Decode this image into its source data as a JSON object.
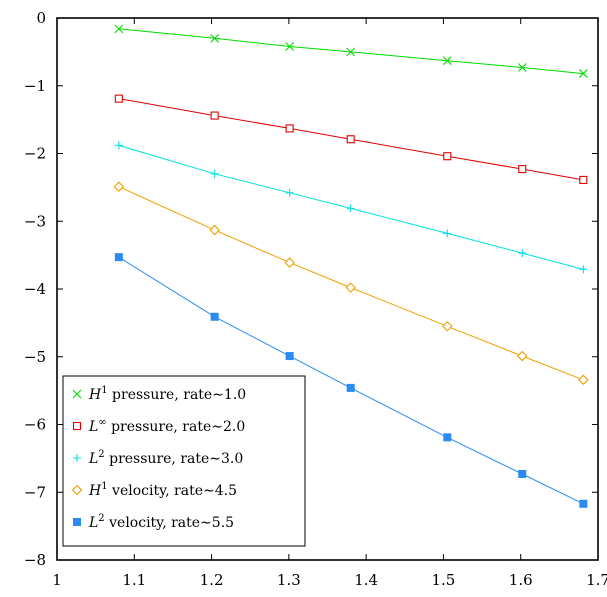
{
  "chart_data": {
    "type": "line",
    "xlim": [
      1,
      1.7
    ],
    "ylim": [
      -8,
      0
    ],
    "x_ticks": [
      "1",
      "1.1",
      "1.2",
      "1.3",
      "1.4",
      "1.5",
      "1.6",
      "1.7"
    ],
    "y_ticks": [
      "0",
      "−1",
      "−2",
      "−3",
      "−4",
      "−5",
      "−6",
      "−7",
      "−8"
    ],
    "x": [
      1.08,
      1.204,
      1.301,
      1.38,
      1.505,
      1.602,
      1.681
    ],
    "grid": false,
    "legend_position": "bottom-left",
    "series": [
      {
        "name": "H^1 pressure, rate∼1.0",
        "label_base": "H",
        "label_sup": "1",
        "label_rest": " pressure, rate∼1.0",
        "color": "#00dd00",
        "marker": "x",
        "values": [
          -0.16,
          -0.3,
          -0.42,
          -0.5,
          -0.63,
          -0.73,
          -0.82
        ]
      },
      {
        "name": "L^∞ pressure, rate∼2.0",
        "label_base": "L",
        "label_sup": "∞",
        "label_rest": " pressure, rate∼2.0",
        "color": "#dd0000",
        "marker": "square-open",
        "values": [
          -1.19,
          -1.44,
          -1.63,
          -1.79,
          -2.04,
          -2.23,
          -2.39
        ]
      },
      {
        "name": "L^2 pressure, rate∼3.0",
        "label_base": "L",
        "label_sup": "2",
        "label_rest": " pressure, rate∼3.0",
        "color": "#00e0e0",
        "marker": "plus",
        "values": [
          -1.88,
          -2.3,
          -2.58,
          -2.81,
          -3.18,
          -3.47,
          -3.71
        ]
      },
      {
        "name": "H^1 velocity, rate∼4.5",
        "label_base": "H",
        "label_sup": "1",
        "label_rest": " velocity, rate∼4.5",
        "color": "#f0a000",
        "marker": "diamond-open",
        "values": [
          -2.49,
          -3.13,
          -3.61,
          -3.98,
          -4.55,
          -4.99,
          -5.34
        ]
      },
      {
        "name": "L^2 velocity, rate∼5.5",
        "label_base": "L",
        "label_sup": "2",
        "label_rest": " velocity, rate∼5.5",
        "color": "#2a8cf0",
        "marker": "square-filled",
        "values": [
          -3.53,
          -4.41,
          -4.99,
          -5.46,
          -6.19,
          -6.73,
          -7.17
        ]
      }
    ]
  }
}
